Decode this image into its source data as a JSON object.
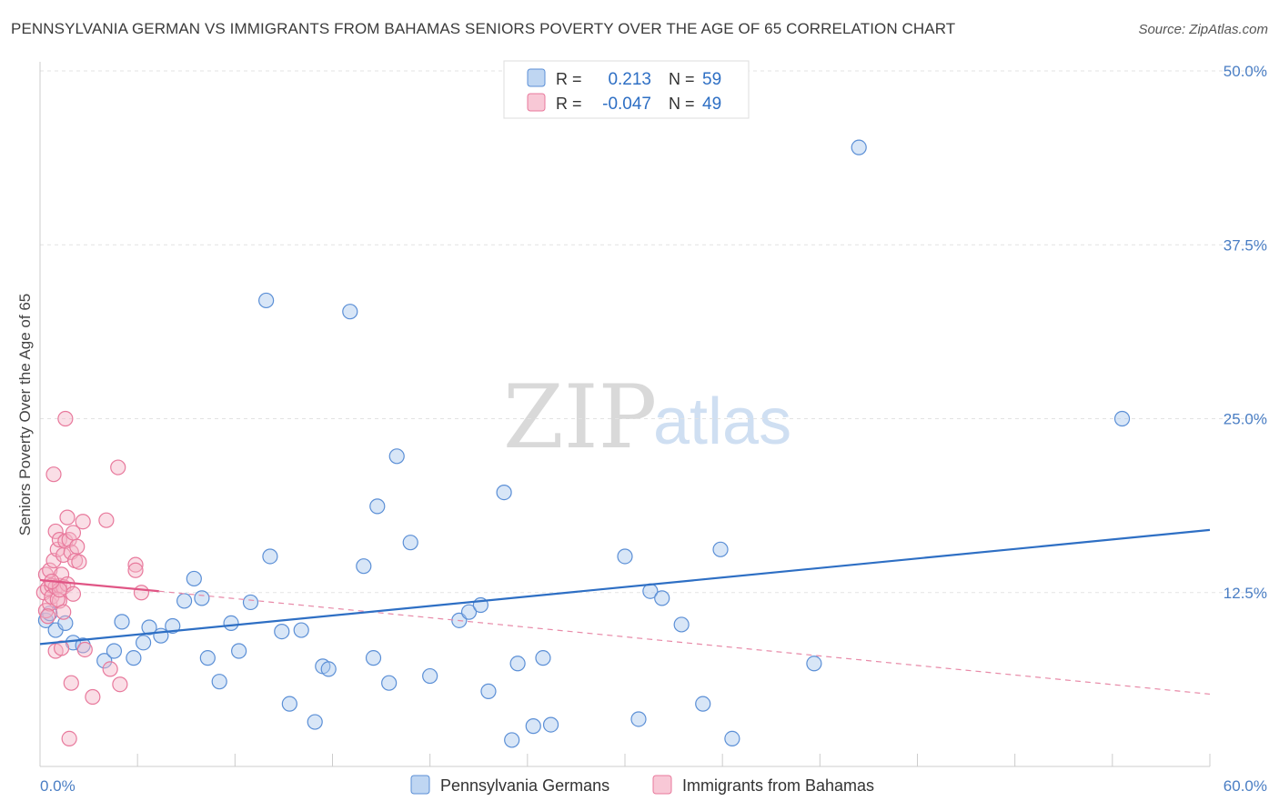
{
  "title": "PENNSYLVANIA GERMAN VS IMMIGRANTS FROM BAHAMAS SENIORS POVERTY OVER THE AGE OF 65 CORRELATION CHART",
  "source": "Source: ZipAtlas.com",
  "watermark": {
    "zip": "ZIP",
    "atlas": "atlas"
  },
  "legend": {
    "rows": [
      {
        "r_label": "R =",
        "r_value": "0.213",
        "n_label": "N =",
        "n_value": "59",
        "color": "#a9c8ee"
      },
      {
        "r_label": "R =",
        "r_value": "-0.047",
        "n_label": "N =",
        "n_value": "49",
        "color": "#f5b5c8"
      }
    ]
  },
  "chart_data": {
    "type": "scatter",
    "title": "PENNSYLVANIA GERMAN VS IMMIGRANTS FROM BAHAMAS SENIORS POVERTY OVER THE AGE OF 65 CORRELATION CHART",
    "xlabel": "",
    "ylabel": "Seniors Poverty Over the Age of 65",
    "xlim": [
      0,
      60
    ],
    "ylim": [
      0,
      50
    ],
    "x_tick_labels": [
      "0.0%",
      "60.0%"
    ],
    "y_tick_labels": [
      "12.5%",
      "25.0%",
      "37.5%",
      "50.0%"
    ],
    "y_ticks": [
      12.5,
      25,
      37.5,
      50
    ],
    "grid": true,
    "legend_position": "top-center",
    "series": [
      {
        "name": "Pennsylvania Germans",
        "color": "#a9c8ee",
        "stroke": "#5b8fd6",
        "trend": {
          "x": [
            0,
            60
          ],
          "y": [
            8.8,
            17.0
          ],
          "color": "#2e6fc4",
          "style": "solid"
        },
        "points": [
          [
            0.3,
            10.5
          ],
          [
            0.8,
            9.8
          ],
          [
            1.3,
            10.3
          ],
          [
            1.7,
            8.9
          ],
          [
            2.2,
            8.7
          ],
          [
            3.3,
            7.6
          ],
          [
            3.8,
            8.3
          ],
          [
            4.2,
            10.4
          ],
          [
            4.8,
            7.8
          ],
          [
            5.3,
            8.9
          ],
          [
            5.6,
            10.0
          ],
          [
            6.2,
            9.4
          ],
          [
            6.8,
            10.1
          ],
          [
            7.4,
            11.9
          ],
          [
            7.9,
            13.5
          ],
          [
            8.3,
            12.1
          ],
          [
            8.6,
            7.8
          ],
          [
            9.2,
            6.1
          ],
          [
            9.8,
            10.3
          ],
          [
            10.2,
            8.3
          ],
          [
            10.8,
            11.8
          ],
          [
            11.6,
            33.5
          ],
          [
            11.8,
            15.1
          ],
          [
            12.4,
            9.7
          ],
          [
            12.8,
            4.5
          ],
          [
            13.4,
            9.8
          ],
          [
            14.1,
            3.2
          ],
          [
            14.5,
            7.2
          ],
          [
            14.8,
            7.0
          ],
          [
            15.9,
            32.7
          ],
          [
            16.6,
            14.4
          ],
          [
            17.1,
            7.8
          ],
          [
            17.3,
            18.7
          ],
          [
            17.9,
            6.0
          ],
          [
            18.3,
            22.3
          ],
          [
            19.0,
            16.1
          ],
          [
            20.0,
            6.5
          ],
          [
            21.5,
            10.5
          ],
          [
            22.0,
            11.1
          ],
          [
            22.6,
            11.6
          ],
          [
            23.0,
            5.4
          ],
          [
            23.8,
            19.7
          ],
          [
            24.2,
            1.9
          ],
          [
            24.5,
            7.4
          ],
          [
            25.3,
            2.9
          ],
          [
            25.8,
            7.8
          ],
          [
            26.2,
            3.0
          ],
          [
            30.0,
            15.1
          ],
          [
            30.7,
            3.4
          ],
          [
            31.3,
            12.6
          ],
          [
            31.9,
            12.1
          ],
          [
            32.9,
            10.2
          ],
          [
            34.0,
            4.5
          ],
          [
            34.9,
            15.6
          ],
          [
            35.5,
            2.0
          ],
          [
            39.7,
            7.4
          ],
          [
            42.0,
            44.5
          ],
          [
            55.5,
            25.0
          ],
          [
            0.5,
            11.0
          ]
        ]
      },
      {
        "name": "Immigrants from Bahamas",
        "color": "#f5b5c8",
        "stroke": "#e8799c",
        "trend_solid": {
          "x": [
            0,
            6.1
          ],
          "y": [
            13.4,
            12.6
          ],
          "color": "#e05585",
          "style": "solid"
        },
        "trend_dashed": {
          "x": [
            6.1,
            60
          ],
          "y": [
            12.6,
            5.2
          ],
          "color": "#e88aa8",
          "style": "dashed"
        },
        "points": [
          [
            0.2,
            12.5
          ],
          [
            0.3,
            13.8
          ],
          [
            0.3,
            11.2
          ],
          [
            0.4,
            12.8
          ],
          [
            0.5,
            14.1
          ],
          [
            0.5,
            11.7
          ],
          [
            0.6,
            13.0
          ],
          [
            0.6,
            12.2
          ],
          [
            0.7,
            21.0
          ],
          [
            0.7,
            14.8
          ],
          [
            0.8,
            16.9
          ],
          [
            0.8,
            12.9
          ],
          [
            0.8,
            8.3
          ],
          [
            0.9,
            15.6
          ],
          [
            1.0,
            13.0
          ],
          [
            1.0,
            11.9
          ],
          [
            1.0,
            16.3
          ],
          [
            1.1,
            8.5
          ],
          [
            1.1,
            13.8
          ],
          [
            1.2,
            12.9
          ],
          [
            1.2,
            15.2
          ],
          [
            1.3,
            16.2
          ],
          [
            1.3,
            25.0
          ],
          [
            1.4,
            13.1
          ],
          [
            1.4,
            17.9
          ],
          [
            1.5,
            2.0
          ],
          [
            1.5,
            16.3
          ],
          [
            1.6,
            15.4
          ],
          [
            1.6,
            6.0
          ],
          [
            1.7,
            12.4
          ],
          [
            1.7,
            16.8
          ],
          [
            1.8,
            14.8
          ],
          [
            1.9,
            15.8
          ],
          [
            2.0,
            14.7
          ],
          [
            2.2,
            17.6
          ],
          [
            2.3,
            8.4
          ],
          [
            2.7,
            5.0
          ],
          [
            3.4,
            17.7
          ],
          [
            3.6,
            7.0
          ],
          [
            4.0,
            21.5
          ],
          [
            4.1,
            5.9
          ],
          [
            4.9,
            14.5
          ],
          [
            4.9,
            14.1
          ],
          [
            5.2,
            12.5
          ],
          [
            0.4,
            10.8
          ],
          [
            0.9,
            12.0
          ],
          [
            1.2,
            11.1
          ],
          [
            1.0,
            12.7
          ],
          [
            0.6,
            13.3
          ]
        ]
      }
    ]
  },
  "bottom_legend": [
    {
      "label": "Pennsylvania Germans",
      "color": "#a9c8ee"
    },
    {
      "label": "Immigrants from Bahamas",
      "color": "#f5b5c8"
    }
  ]
}
